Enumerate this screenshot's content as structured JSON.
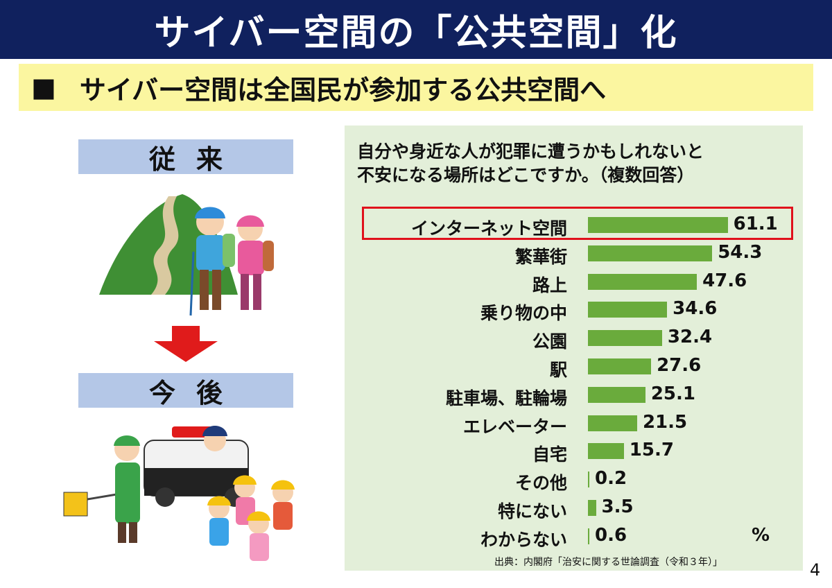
{
  "title": "サイバー空間の「公共空間」化",
  "subtitle": {
    "bullet": "■",
    "text": "サイバー空間は全国民が参加する公共空間へ"
  },
  "left": {
    "before_label": "従来",
    "after_label": "今後"
  },
  "chart_data": {
    "type": "bar",
    "orientation": "horizontal",
    "title": "自分や身近な人が犯罪に遭うかもしれないと不安になる場所はどこですか。（複数回答）",
    "title_lines": [
      "自分や身近な人が犯罪に遭うかもしれないと",
      "不安になる場所はどこですか。（複数回答）"
    ],
    "categories": [
      "インターネット空間",
      "繁華街",
      "路上",
      "乗り物の中",
      "公園",
      "駅",
      "駐車場、駐輪場",
      "エレベーター",
      "自宅",
      "その他",
      "特にない",
      "わからない"
    ],
    "values": [
      61.1,
      54.3,
      47.6,
      34.6,
      32.4,
      27.6,
      25.1,
      21.5,
      15.7,
      0.2,
      3.5,
      0.6
    ],
    "value_labels": [
      "61.1",
      "54.3",
      "47.6",
      "34.6",
      "32.4",
      "27.6",
      "25.1",
      "21.5",
      "15.7",
      "0.2",
      "3.5",
      "0.6"
    ],
    "unit": "%",
    "highlighted_category": "インターネット空間",
    "bar_color": "#6aab3c",
    "highlight_color": "#e0111c",
    "source": "出典：内閣府「治安に関する世論調査（令和３年）」"
  },
  "page_number": "4"
}
